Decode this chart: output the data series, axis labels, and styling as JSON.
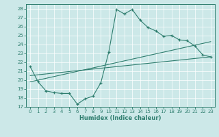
{
  "title": "",
  "xlabel": "Humidex (Indice chaleur)",
  "bg_color": "#cce8e8",
  "line_color": "#2e7d6e",
  "xlim": [
    -0.5,
    23.5
  ],
  "ylim": [
    17,
    28.5
  ],
  "xticks": [
    0,
    1,
    2,
    3,
    4,
    5,
    6,
    7,
    8,
    9,
    10,
    11,
    12,
    13,
    14,
    15,
    16,
    17,
    18,
    19,
    20,
    21,
    22,
    23
  ],
  "yticks": [
    17,
    18,
    19,
    20,
    21,
    22,
    23,
    24,
    25,
    26,
    27,
    28
  ],
  "main_curve": {
    "x": [
      0,
      1,
      2,
      3,
      4,
      5,
      6,
      7,
      8,
      9,
      10,
      11,
      12,
      13,
      14,
      15,
      16,
      17,
      18,
      19,
      20,
      21,
      22,
      23
    ],
    "y": [
      21.5,
      19.8,
      18.8,
      18.6,
      18.5,
      18.5,
      17.3,
      17.9,
      18.2,
      19.7,
      23.1,
      27.9,
      27.4,
      27.9,
      26.7,
      25.9,
      25.5,
      24.9,
      25.0,
      24.5,
      24.4,
      23.8,
      22.8,
      22.6
    ]
  },
  "line1": {
    "x": [
      0,
      23
    ],
    "y": [
      19.8,
      24.3
    ]
  },
  "line2": {
    "x": [
      0,
      23
    ],
    "y": [
      20.5,
      22.6
    ]
  }
}
